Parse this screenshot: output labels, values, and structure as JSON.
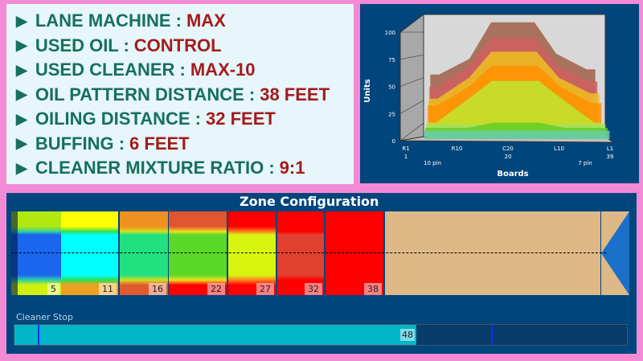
{
  "info": [
    {
      "label": "LANE MACHINE :",
      "value": "MAX"
    },
    {
      "label": "USED OIL :",
      "value": "CONTROL"
    },
    {
      "label": "USED CLEANER :",
      "value": "MAX-10"
    },
    {
      "label": "OIL PATTERN DISTANCE :",
      "value": "38 FEET"
    },
    {
      "label": "OILING DISTANCE :",
      "value": "32 FEET"
    },
    {
      "label": "BUFFING :",
      "value": "6 FEET"
    },
    {
      "label": "CLEANER MIXTURE RATIO :",
      "value": "9:1"
    }
  ],
  "chart_data": {
    "type": "area",
    "xlabel": "Boards",
    "ylabel": "Units",
    "ylim": [
      0,
      100
    ],
    "yticks": [
      "0",
      "25",
      "50",
      "75",
      "100"
    ],
    "xticks": [
      {
        "label": "R1",
        "sub": "1"
      },
      {
        "label": "R10",
        "sub": ""
      },
      {
        "label": "C20",
        "sub": "20"
      },
      {
        "label": "L10",
        "sub": ""
      },
      {
        "label": "L1",
        "sub": "39"
      }
    ],
    "xnotes": [
      "10 pin",
      "7 pin"
    ],
    "x": [
      1,
      3,
      10,
      15,
      25,
      30,
      37,
      39
    ],
    "series": [
      {
        "color": "#a0604a",
        "values": [
          45,
          45,
          60,
          95,
          95,
          65,
          50,
          50
        ]
      },
      {
        "color": "#d06060",
        "values": [
          35,
          35,
          55,
          82,
          82,
          55,
          40,
          40
        ]
      },
      {
        "color": "#f0c020",
        "values": [
          25,
          25,
          45,
          70,
          70,
          45,
          30,
          30
        ]
      },
      {
        "color": "#ff9000",
        "values": [
          20,
          20,
          38,
          58,
          58,
          38,
          22,
          22
        ]
      },
      {
        "color": "#c0e830",
        "values": [
          5,
          5,
          28,
          45,
          45,
          28,
          5,
          5
        ]
      },
      {
        "color": "#a0e060",
        "values": [
          5,
          5,
          5,
          5,
          5,
          5,
          5,
          5
        ]
      },
      {
        "color": "#66cc22",
        "values": [
          3,
          3,
          3,
          8,
          8,
          3,
          3,
          3
        ]
      },
      {
        "color": "#66ccaa",
        "values": [
          2,
          2,
          2,
          2,
          2,
          2,
          2,
          2
        ]
      }
    ]
  },
  "zone": {
    "title": "Zone Configuration",
    "zones": [
      {
        "label": "5",
        "colors": [
          "#b0e810",
          "#30d0a0",
          "#1a66ee",
          "#1a66ee",
          "#30d0a0",
          "#d0f010"
        ]
      },
      {
        "label": "11",
        "colors": [
          "#ffff00",
          "#30e050",
          "#00ffff",
          "#00ffff",
          "#30e050",
          "#f0a020"
        ]
      },
      {
        "label": "16",
        "colors": [
          "#f09020",
          "#d0e020",
          "#20e080",
          "#20e080",
          "#d0e020",
          "#e05a30"
        ]
      },
      {
        "label": "22",
        "colors": [
          "#e05530",
          "#f0e020",
          "#5ad828",
          "#5ad828",
          "#f0e020",
          "#ff0000"
        ]
      },
      {
        "label": "27",
        "colors": [
          "#ff0000",
          "#ff8020",
          "#d8f510",
          "#d8f510",
          "#ff8020",
          "#ff0000"
        ]
      },
      {
        "label": "32",
        "colors": [
          "#ff0000",
          "#ff0000",
          "#e04030",
          "#e04030",
          "#ff0000",
          "#ff0000"
        ]
      },
      {
        "label": "38",
        "colors": [
          "#ff0000",
          "#ff0000",
          "#ff0000",
          "#ff0000",
          "#ff0000",
          "#ff0000"
        ]
      }
    ],
    "lane_color": "#deb887",
    "cleaner_stop": {
      "label": "Cleaner Stop",
      "value": "48"
    }
  }
}
